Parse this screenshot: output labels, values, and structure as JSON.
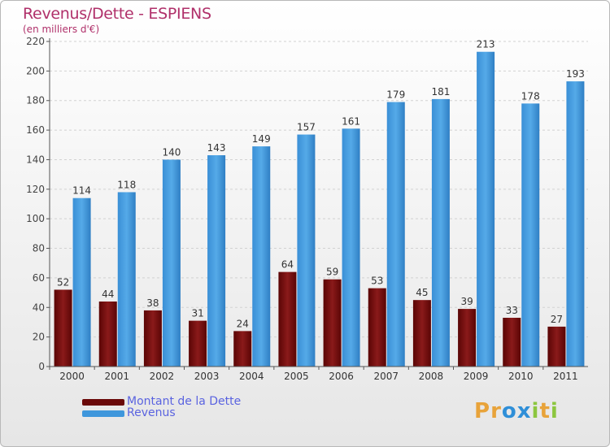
{
  "header": {
    "title": "Revenus/Dette - ESPIENS",
    "subtitle": "(en milliers d'€)"
  },
  "legend": {
    "items": [
      {
        "label": "Montant de la Dette",
        "color": "#7a0e0e"
      },
      {
        "label": "Revenus",
        "color": "#3f97dc"
      }
    ]
  },
  "logo": {
    "letters": [
      "P",
      "r",
      "o",
      "x",
      "i",
      "t",
      "i"
    ],
    "colors": [
      "#e8a33a",
      "#e8a33a",
      "#2f8fd8",
      "#2f8fd8",
      "#8cc63f",
      "#e8a33a",
      "#8cc63f"
    ]
  },
  "chart_data": {
    "type": "bar",
    "title": "Revenus/Dette - ESPIENS",
    "subtitle": "(en milliers d'€)",
    "categories": [
      "2000",
      "2001",
      "2002",
      "2003",
      "2004",
      "2005",
      "2006",
      "2007",
      "2008",
      "2009",
      "2010",
      "2011"
    ],
    "series": [
      {
        "name": "Montant de la Dette",
        "color": "#7a0e0e",
        "values": [
          52,
          44,
          38,
          31,
          24,
          64,
          59,
          53,
          45,
          39,
          33,
          27
        ]
      },
      {
        "name": "Revenus",
        "color": "#3f97dc",
        "values": [
          114,
          118,
          140,
          143,
          149,
          157,
          161,
          179,
          181,
          213,
          178,
          193
        ]
      }
    ],
    "ylim": [
      0,
      220
    ],
    "yticks": [
      0,
      20,
      40,
      60,
      80,
      100,
      120,
      140,
      160,
      180,
      200,
      220
    ],
    "grid": true,
    "legend_position": "bottom-left"
  }
}
